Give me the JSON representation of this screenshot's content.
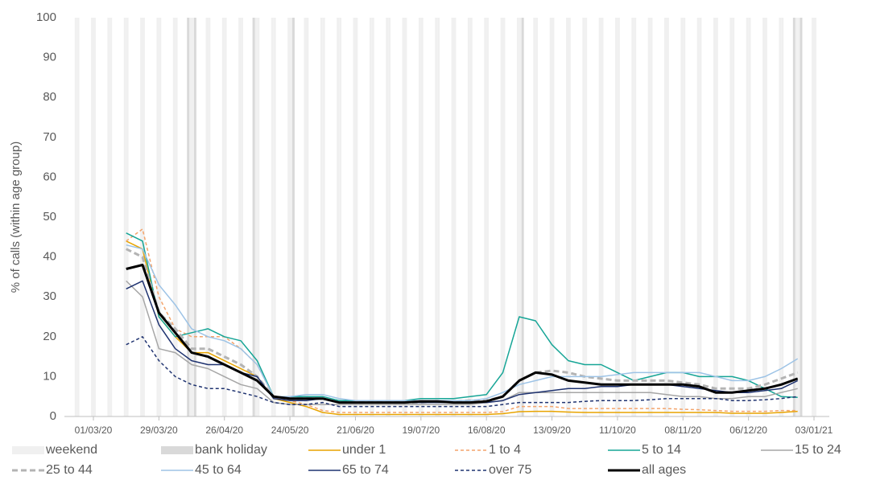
{
  "chart_data": {
    "type": "line",
    "y_label": "% of calls (within age group)",
    "xlim": [
      "2020-03-01",
      "2021-01-03"
    ],
    "xticks": [
      {
        "value": "2020-03-01",
        "label": "01/03/20"
      },
      {
        "value": "2020-03-29",
        "label": "29/03/20"
      },
      {
        "value": "2020-04-26",
        "label": "26/04/20"
      },
      {
        "value": "2020-05-24",
        "label": "24/05/20"
      },
      {
        "value": "2020-06-21",
        "label": "21/06/20"
      },
      {
        "value": "2020-07-19",
        "label": "19/07/20"
      },
      {
        "value": "2020-08-16",
        "label": "16/08/20"
      },
      {
        "value": "2020-09-13",
        "label": "13/09/20"
      },
      {
        "value": "2020-10-11",
        "label": "11/10/20"
      },
      {
        "value": "2020-11-08",
        "label": "08/11/20"
      },
      {
        "value": "2020-12-06",
        "label": "06/12/20"
      },
      {
        "value": "2021-01-03",
        "label": "03/01/21"
      }
    ],
    "ylim": [
      0,
      100
    ],
    "yticks": [
      0,
      10,
      20,
      30,
      40,
      50,
      60,
      70,
      80,
      90,
      100
    ],
    "shading": [
      {
        "name": "weekend",
        "color": "#f0f0f0",
        "weekdays": [
          0,
          6
        ]
      },
      {
        "name": "bank holiday",
        "color": "#d9d9d9",
        "dates": [
          "2020-04-10",
          "2020-04-13",
          "2020-05-08",
          "2020-05-25",
          "2020-08-31",
          "2020-12-25",
          "2020-12-28"
        ]
      }
    ],
    "x": [
      "2020-03-15",
      "2020-03-22",
      "2020-03-29",
      "2020-04-05",
      "2020-04-12",
      "2020-04-19",
      "2020-04-26",
      "2020-05-03",
      "2020-05-10",
      "2020-05-17",
      "2020-05-24",
      "2020-05-31",
      "2020-06-07",
      "2020-06-14",
      "2020-06-21",
      "2020-06-28",
      "2020-07-05",
      "2020-07-12",
      "2020-07-19",
      "2020-07-26",
      "2020-08-02",
      "2020-08-09",
      "2020-08-16",
      "2020-08-23",
      "2020-08-30",
      "2020-09-06",
      "2020-09-13",
      "2020-09-20",
      "2020-09-27",
      "2020-10-04",
      "2020-10-11",
      "2020-10-18",
      "2020-10-25",
      "2020-11-01",
      "2020-11-08",
      "2020-11-15",
      "2020-11-22",
      "2020-11-29",
      "2020-12-06",
      "2020-12-13",
      "2020-12-20",
      "2020-12-27"
    ],
    "series": [
      {
        "name": "under 1",
        "color": "#e8a400",
        "dashed": false,
        "line_width": 1.5,
        "values": [
          44,
          42,
          25,
          20,
          16,
          16,
          14,
          12,
          10,
          4.5,
          3.5,
          2.5,
          1,
          0.5,
          0.5,
          0.5,
          0.5,
          0.5,
          0.5,
          0.5,
          0.5,
          0.5,
          0.5,
          0.7,
          1.2,
          1.3,
          1.3,
          1.1,
          1,
          1,
          1,
          1,
          1,
          1,
          1,
          1,
          1,
          0.8,
          0.8,
          0.8,
          1,
          1.3
        ]
      },
      {
        "name": "1 to 4",
        "color": "#f4a46b",
        "dashed": true,
        "line_width": 1.5,
        "values": [
          44,
          47,
          30,
          22,
          20,
          20,
          20,
          17,
          13,
          5,
          4,
          3,
          1.5,
          1,
          1,
          1,
          1,
          1,
          1,
          1,
          1,
          1,
          1,
          1.2,
          2.5,
          2.5,
          2.5,
          2,
          2,
          2,
          2,
          2,
          2,
          2,
          1.8,
          1.7,
          1.5,
          1.3,
          1.3,
          1.3,
          1.5,
          1.5
        ]
      },
      {
        "name": "5 to 14",
        "color": "#16a596",
        "dashed": false,
        "line_width": 1.5,
        "values": [
          46,
          44,
          25,
          20,
          21,
          22,
          20,
          19,
          14,
          5,
          5,
          5,
          5,
          4,
          4,
          4,
          4,
          4,
          4.5,
          4.5,
          4.5,
          5,
          5.5,
          11,
          25,
          24,
          18,
          14,
          13,
          13,
          11,
          9,
          10,
          11,
          11,
          10,
          10,
          10,
          9,
          7,
          5,
          4.8
        ]
      },
      {
        "name": "15 to 24",
        "color": "#a6a6a6",
        "dashed": false,
        "line_width": 1.5,
        "values": [
          34,
          30,
          17,
          16,
          13,
          12,
          10,
          8,
          7,
          3.5,
          3,
          3,
          3,
          3,
          3,
          3,
          3,
          3,
          3,
          3,
          3,
          3,
          3.5,
          4,
          6,
          6,
          6,
          6,
          6,
          6,
          6,
          6,
          6,
          5.5,
          5,
          5,
          4.5,
          4.5,
          5,
          5,
          6,
          7
        ]
      },
      {
        "name": "25 to 44",
        "color": "#b4b4b4",
        "dashed": true,
        "line_width": 3,
        "values": [
          42,
          40,
          26,
          22,
          17,
          17,
          15,
          13,
          10,
          5,
          4.5,
          4.5,
          4.5,
          3.5,
          3.5,
          3.5,
          3.5,
          3.5,
          3.5,
          3.8,
          3.8,
          4,
          4,
          5,
          9,
          11,
          11.5,
          11,
          10,
          9.5,
          9,
          9,
          9,
          9,
          8.5,
          8,
          7,
          7,
          7,
          8,
          9.5,
          11
        ]
      },
      {
        "name": "45 to 64",
        "color": "#9dc3e6",
        "dashed": false,
        "line_width": 1.5,
        "values": [
          43,
          42,
          33,
          28,
          22,
          20,
          19,
          17,
          13,
          5,
          5,
          5.5,
          5.5,
          4.5,
          4,
          4,
          4,
          4,
          4,
          4,
          4,
          4,
          4.5,
          6,
          8,
          9,
          10,
          10,
          10,
          10,
          10.5,
          11,
          11,
          11,
          11,
          11,
          10,
          9,
          9,
          10,
          12,
          14.5
        ]
      },
      {
        "name": "65 to 74",
        "color": "#1f3370",
        "dashed": false,
        "line_width": 1.5,
        "values": [
          32,
          34,
          23,
          17,
          14,
          13,
          13,
          11,
          10,
          4.5,
          4,
          4,
          4.5,
          3.5,
          3.5,
          3.5,
          3.5,
          3.5,
          3.5,
          3.5,
          3.5,
          3.5,
          3.5,
          4,
          5.5,
          6,
          6.5,
          7,
          7,
          7.5,
          7.5,
          8,
          8,
          8,
          7.5,
          7,
          6.5,
          6,
          6,
          6.5,
          7,
          9
        ]
      },
      {
        "name": "over 75",
        "color": "#1f3370",
        "dashed": true,
        "line_width": 1.5,
        "values": [
          18,
          20,
          14,
          10,
          8,
          7,
          7,
          6,
          5,
          3.5,
          3,
          3,
          3.5,
          2.5,
          2.5,
          2.5,
          2.5,
          2.5,
          2.5,
          2.5,
          2.5,
          2.5,
          2.5,
          3,
          3.5,
          3.5,
          3.5,
          3.5,
          3.8,
          4,
          4,
          4,
          4.2,
          4.5,
          4.5,
          4.5,
          4.5,
          4,
          4,
          4.2,
          4.5,
          5
        ]
      },
      {
        "name": "all ages",
        "color": "#000000",
        "dashed": false,
        "line_width": 3,
        "values": [
          37,
          38,
          26,
          21,
          16,
          15,
          13,
          11,
          9,
          5,
          4.5,
          4.5,
          4.5,
          3.5,
          3.5,
          3.5,
          3.5,
          3.5,
          3.8,
          3.8,
          3.5,
          3.5,
          3.8,
          5,
          9,
          11,
          10.5,
          9,
          8.5,
          8,
          8,
          8,
          8,
          8,
          8,
          7.5,
          6,
          6,
          6.5,
          7,
          8,
          9.5
        ]
      }
    ]
  }
}
